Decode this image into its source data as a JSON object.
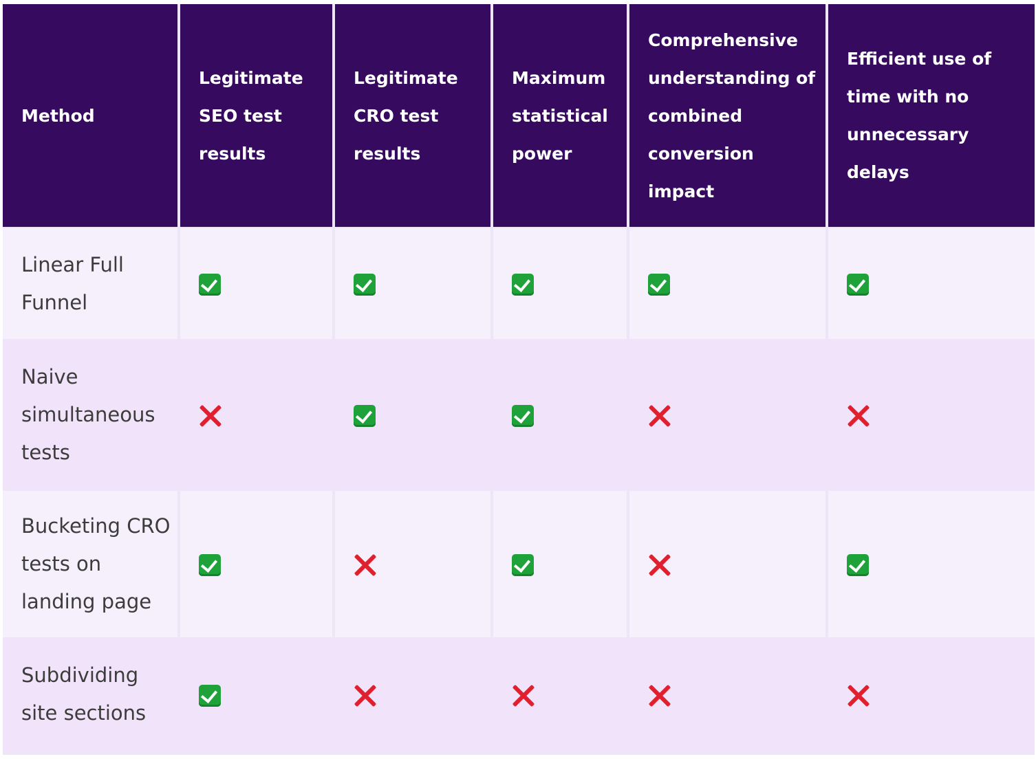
{
  "headers": [
    "Method",
    "Legitimate SEO test results",
    "Legitimate CRO test results",
    "Maximum statistical power",
    "Comprehensive understanding of combined conversion impact",
    "Efficient use of time with no unnecessary delays"
  ],
  "rows": [
    {
      "method": "Linear Full Funnel",
      "values": [
        true,
        true,
        true,
        true,
        true
      ]
    },
    {
      "method": "Naive simultaneous tests",
      "values": [
        false,
        true,
        true,
        false,
        false
      ]
    },
    {
      "method": "Bucketing CRO tests on landing page",
      "values": [
        true,
        false,
        true,
        false,
        true
      ]
    },
    {
      "method": "Subdividing site sections",
      "values": [
        true,
        false,
        false,
        false,
        false
      ]
    }
  ],
  "icons": {
    "true": "check-mark-icon",
    "false": "cross-mark-icon"
  },
  "colors": {
    "header_bg": "#360a5e",
    "check": "#1fa23a",
    "cross": "#e0202e"
  }
}
